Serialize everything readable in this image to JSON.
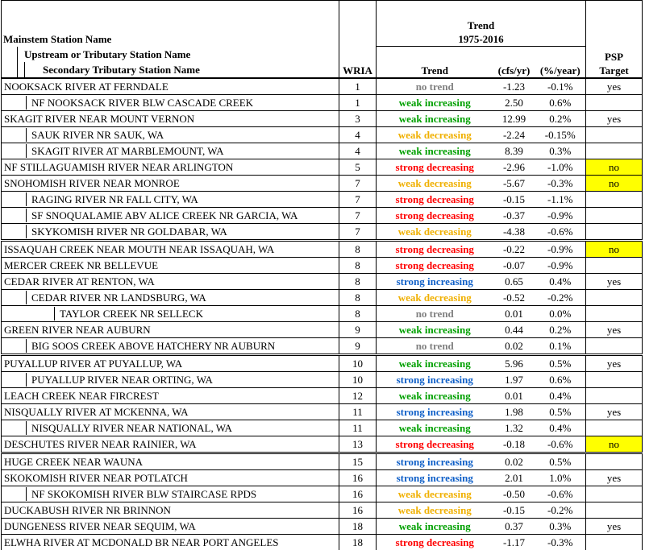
{
  "header": {
    "station_l1": "Mainstem Station Name",
    "station_l2": "Upstream or Tributary Station Name",
    "station_l3": "Secondary Tributary Station Name",
    "wria": "WRIA",
    "trend_title": "Trend",
    "trend_period": "1975-2016",
    "trend": "Trend",
    "cfs": "(cfs/yr)",
    "pct": "(%/year)",
    "psp_line1": "PSP",
    "psp_line2": "Target"
  },
  "colors": {
    "no trend": "#808080",
    "weak increasing": "#00a000",
    "weak decreasing": "#f0b000",
    "strong decreasing": "#ff0000",
    "strong increasing": "#1060c8",
    "psp_no_highlight": "#ffff00"
  },
  "rows": [
    {
      "level": 1,
      "name": "NOOKSACK RIVER AT FERNDALE",
      "wria": "1",
      "trend": "no trend",
      "cfs": "-1.23",
      "pct": "-0.1%",
      "psp": "yes",
      "sep": "first"
    },
    {
      "level": 2,
      "name": "NF NOOKSACK RIVER BLW CASCADE CREEK",
      "wria": "1",
      "trend": "weak increasing",
      "cfs": "2.50",
      "pct": "0.6%",
      "psp": "",
      "sep": "thin"
    },
    {
      "level": 1,
      "name": "SKAGIT RIVER NEAR MOUNT VERNON",
      "wria": "3",
      "trend": "weak increasing",
      "cfs": "12.99",
      "pct": "0.2%",
      "psp": "yes",
      "sep": "thin"
    },
    {
      "level": 2,
      "name": "SAUK RIVER NR SAUK, WA",
      "wria": "4",
      "trend": "weak decreasing",
      "cfs": "-2.24",
      "pct": "-0.15%",
      "psp": "",
      "sep": "thin"
    },
    {
      "level": 2,
      "name": "SKAGIT RIVER AT MARBLEMOUNT, WA",
      "wria": "4",
      "trend": "weak increasing",
      "cfs": "8.39",
      "pct": "0.3%",
      "psp": "",
      "sep": "thin"
    },
    {
      "level": 1,
      "name": "NF STILLAGUAMISH RIVER NEAR ARLINGTON",
      "wria": "5",
      "trend": "strong decreasing",
      "cfs": "-2.96",
      "pct": "-1.0%",
      "psp": "no",
      "sep": "thin"
    },
    {
      "level": 1,
      "name": "SNOHOMISH RIVER NEAR MONROE",
      "wria": "7",
      "trend": "weak decreasing",
      "cfs": "-5.67",
      "pct": "-0.3%",
      "psp": "no",
      "sep": "thin"
    },
    {
      "level": 2,
      "name": "RAGING RIVER NR FALL CITY, WA",
      "wria": "7",
      "trend": "strong decreasing",
      "cfs": "-0.15",
      "pct": "-1.1%",
      "psp": "",
      "sep": "thin"
    },
    {
      "level": 2,
      "name": "SF SNOQUALAMIE ABV ALICE CREEK NR GARCIA, WA",
      "wria": "7",
      "trend": "strong decreasing",
      "cfs": "-0.37",
      "pct": "-0.9%",
      "psp": "",
      "sep": "thin"
    },
    {
      "level": 2,
      "name": "SKYKOMISH RIVER NR GOLDABAR, WA",
      "wria": "7",
      "trend": "weak decreasing",
      "cfs": "-4.38",
      "pct": "-0.6%",
      "psp": "",
      "sep": "thin"
    },
    {
      "level": 1,
      "name": "ISSAQUAH CREEK NEAR MOUTH NEAR ISSAQUAH, WA",
      "wria": "8",
      "trend": "strong decreasing",
      "cfs": "-0.22",
      "pct": "-0.9%",
      "psp": "no",
      "sep": "thick"
    },
    {
      "level": 1,
      "name": "MERCER CREEK NR BELLEVUE",
      "wria": "8",
      "trend": "strong decreasing",
      "cfs": "-0.07",
      "pct": "-0.9%",
      "psp": "",
      "sep": "thin"
    },
    {
      "level": 1,
      "name": "CEDAR RIVER AT RENTON, WA",
      "wria": "8",
      "trend": "strong increasing",
      "cfs": "0.65",
      "pct": "0.4%",
      "psp": "yes",
      "sep": "thin"
    },
    {
      "level": 2,
      "name": "CEDAR RIVER NR LANDSBURG, WA",
      "wria": "8",
      "trend": "weak decreasing",
      "cfs": "-0.52",
      "pct": "-0.2%",
      "psp": "",
      "sep": "thin"
    },
    {
      "level": 3,
      "name": "TAYLOR CREEK NR SELLECK",
      "wria": "8",
      "trend": "no trend",
      "cfs": "0.01",
      "pct": "0.0%",
      "psp": "",
      "sep": "thin"
    },
    {
      "level": 1,
      "name": "GREEN RIVER NEAR AUBURN",
      "wria": "9",
      "trend": "weak increasing",
      "cfs": "0.44",
      "pct": "0.2%",
      "psp": "yes",
      "sep": "thin"
    },
    {
      "level": 2,
      "name": "BIG SOOS CREEK ABOVE HATCHERY NR AUBURN",
      "wria": "9",
      "trend": "no trend",
      "cfs": "0.02",
      "pct": "0.1%",
      "psp": "",
      "sep": "thin"
    },
    {
      "level": 1,
      "name": "PUYALLUP RIVER AT PUYALLUP, WA",
      "wria": "10",
      "trend": "weak increasing",
      "cfs": "5.96",
      "pct": "0.5%",
      "psp": "yes",
      "sep": "thick"
    },
    {
      "level": 2,
      "name": "PUYALLUP RIVER NEAR ORTING, WA",
      "wria": "10",
      "trend": "strong increasing",
      "cfs": "1.97",
      "pct": "0.6%",
      "psp": "",
      "sep": "thin"
    },
    {
      "level": 1,
      "name": "LEACH CREEK NEAR FIRCREST",
      "wria": "12",
      "trend": "weak increasing",
      "cfs": "0.01",
      "pct": "0.4%",
      "psp": "",
      "sep": "thin"
    },
    {
      "level": 1,
      "name": "NISQUALLY RIVER AT MCKENNA, WA",
      "wria": "11",
      "trend": "strong increasing",
      "cfs": "1.98",
      "pct": "0.5%",
      "psp": "yes",
      "sep": "thin"
    },
    {
      "level": 2,
      "name": "NISQUALLY RIVER NEAR NATIONAL, WA",
      "wria": "11",
      "trend": "weak increasing",
      "cfs": "1.32",
      "pct": "0.4%",
      "psp": "",
      "sep": "thin"
    },
    {
      "level": 1,
      "name": "DESCHUTES RIVER NEAR RAINIER, WA",
      "wria": "13",
      "trend": "strong decreasing",
      "cfs": "-0.18",
      "pct": "-0.6%",
      "psp": "no",
      "sep": "thin"
    },
    {
      "level": 1,
      "name": "HUGE CREEK NEAR WAUNA",
      "wria": "15",
      "trend": "strong increasing",
      "cfs": "0.02",
      "pct": "0.5%",
      "psp": "",
      "sep": "thick"
    },
    {
      "level": 1,
      "name": "SKOKOMISH RIVER NEAR POTLATCH",
      "wria": "16",
      "trend": "strong increasing",
      "cfs": "2.01",
      "pct": "1.0%",
      "psp": "yes",
      "sep": "thin"
    },
    {
      "level": 2,
      "name": "NF SKOKOMISH RIVER BLW STAIRCASE RPDS",
      "wria": "16",
      "trend": "weak decreasing",
      "cfs": "-0.50",
      "pct": "-0.6%",
      "psp": "",
      "sep": "thin"
    },
    {
      "level": 1,
      "name": "DUCKABUSH RIVER NR BRINNON",
      "wria": "16",
      "trend": "weak decreasing",
      "cfs": "-0.15",
      "pct": "-0.2%",
      "psp": "",
      "sep": "thin"
    },
    {
      "level": 1,
      "name": "DUNGENESS RIVER NEAR SEQUIM, WA",
      "wria": "18",
      "trend": "weak increasing",
      "cfs": "0.37",
      "pct": "0.3%",
      "psp": "yes",
      "sep": "thin"
    },
    {
      "level": 1,
      "name": "ELWHA RIVER AT MCDONALD BR NEAR PORT ANGELES",
      "wria": "18",
      "trend": "strong decreasing",
      "cfs": "-1.17",
      "pct": "-0.3%",
      "psp": "",
      "sep": "thin"
    }
  ]
}
